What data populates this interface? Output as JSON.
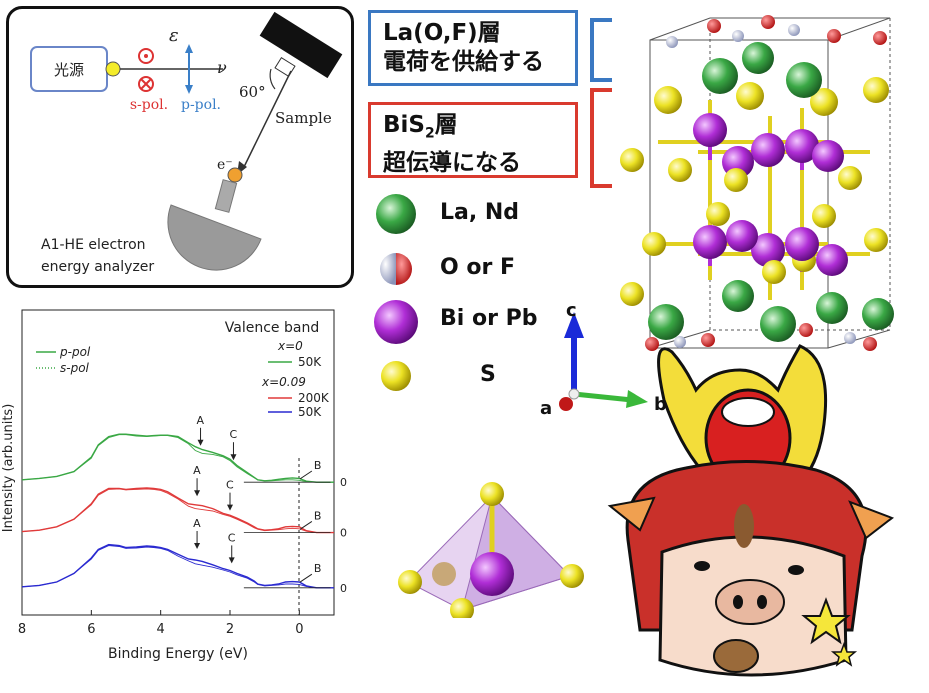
{
  "setup": {
    "light_source": "光源",
    "epsilon": "ε",
    "nu": "ν",
    "s_pol": "s-pol.",
    "p_pol": "p-pol.",
    "angle": "60°",
    "sample": "Sample",
    "electron": "e⁻",
    "analyzer_line1": "A1-HE electron",
    "analyzer_line2": "energy analyzer"
  },
  "layers": {
    "la_line1": "La(O,F)層",
    "la_line2": "電荷を供給する",
    "bi_line1_main": "BiS",
    "bi_line1_sub": "2",
    "bi_line1_tail": "層",
    "bi_line2": "超伝導になる"
  },
  "atom_legend": [
    {
      "label": "La, Nd",
      "color": "#3aa845"
    },
    {
      "label": "O or F",
      "color": "#dd2222"
    },
    {
      "label": "Bi or Pb",
      "color": "#b02ed6"
    },
    {
      "label": "S",
      "color": "#e8e020"
    }
  ],
  "axes_labels": {
    "c": "c",
    "a": "a",
    "b": "b"
  },
  "chart_data": {
    "type": "line",
    "title": "Valence band",
    "xlabel": "Binding Energy (eV)",
    "ylabel": "Intensity (arb.units)",
    "xlim": [
      8,
      -1
    ],
    "x_ticks": [
      "8",
      "6",
      "4",
      "2",
      "0"
    ],
    "zero_labels": [
      "0",
      "0",
      "0"
    ],
    "legend_linestyle": [
      {
        "name": "p-pol",
        "style": "solid"
      },
      {
        "name": "s-pol",
        "style": "dotted"
      }
    ],
    "groups": [
      {
        "heading": "x=0",
        "series": [
          {
            "name": "50K",
            "color": "#3aa845"
          }
        ]
      },
      {
        "heading": "x=0.09",
        "series": [
          {
            "name": "200K",
            "color": "#e03a3a"
          },
          {
            "name": "50K",
            "color": "#2a2ad0"
          }
        ]
      }
    ],
    "peak_labels": [
      "A",
      "C",
      "B",
      "A",
      "C",
      "B",
      "A",
      "C",
      "B"
    ],
    "series": [
      {
        "name": "x=0 50K p-pol",
        "color": "#3aa845",
        "offset": 2.6,
        "x": [
          8,
          7.5,
          7,
          6.5,
          6,
          5.8,
          5.5,
          5.2,
          5,
          4.7,
          4.4,
          4.2,
          4,
          3.8,
          3.5,
          3.2,
          3,
          2.8,
          2.5,
          2.2,
          2,
          1.8,
          1.5,
          1.3,
          1.2,
          1.0,
          0.8,
          0.6,
          0.4,
          0.2,
          0.0,
          -0.2,
          -0.5,
          -1
        ],
        "y": [
          0.05,
          0.08,
          0.12,
          0.22,
          0.52,
          0.78,
          0.95,
          1.0,
          1.0,
          0.98,
          0.96,
          0.97,
          0.98,
          0.98,
          0.95,
          0.82,
          0.74,
          0.68,
          0.62,
          0.55,
          0.48,
          0.35,
          0.2,
          0.1,
          0.05,
          0.03,
          0.04,
          0.06,
          0.08,
          0.09,
          0.08,
          0.02,
          0.0,
          0.0
        ]
      },
      {
        "name": "x=0 50K s-pol",
        "color": "#3aa845",
        "offset": 2.6,
        "dotted": true,
        "x": [
          8,
          7.5,
          7,
          6.5,
          6,
          5.8,
          5.5,
          5.2,
          5,
          4.7,
          4.4,
          4.2,
          4,
          3.8,
          3.5,
          3.2,
          3,
          2.8,
          2.5,
          2.2,
          2,
          1.8,
          1.5,
          1.3,
          1.2,
          1.0,
          0.8,
          0.6,
          0.4,
          0.2,
          0.0,
          -0.2,
          -0.5,
          -1
        ],
        "y": [
          0.05,
          0.08,
          0.12,
          0.22,
          0.5,
          0.76,
          0.93,
          0.99,
          0.99,
          0.96,
          0.95,
          0.96,
          0.97,
          0.97,
          0.93,
          0.8,
          0.66,
          0.6,
          0.58,
          0.53,
          0.45,
          0.32,
          0.18,
          0.09,
          0.05,
          0.03,
          0.03,
          0.04,
          0.05,
          0.05,
          0.04,
          0.01,
          0.0,
          0.0
        ]
      },
      {
        "name": "x=0.09 200K p-pol",
        "color": "#e03a3a",
        "offset": 1.55,
        "x": [
          8,
          7.5,
          7,
          6.5,
          6,
          5.8,
          5.5,
          5.2,
          5,
          4.7,
          4.4,
          4.2,
          4,
          3.8,
          3.5,
          3.2,
          3,
          2.8,
          2.5,
          2.2,
          2,
          1.8,
          1.5,
          1.3,
          1.2,
          1.0,
          0.8,
          0.6,
          0.4,
          0.2,
          0.0,
          -0.2,
          -0.5,
          -1
        ],
        "y": [
          0.02,
          0.05,
          0.12,
          0.28,
          0.6,
          0.8,
          0.92,
          0.92,
          0.9,
          0.92,
          0.93,
          0.92,
          0.9,
          0.85,
          0.72,
          0.6,
          0.58,
          0.56,
          0.5,
          0.4,
          0.36,
          0.3,
          0.2,
          0.12,
          0.08,
          0.05,
          0.06,
          0.08,
          0.12,
          0.13,
          0.12,
          0.04,
          0.0,
          0.0
        ]
      },
      {
        "name": "x=0.09 200K s-pol",
        "color": "#e03a3a",
        "offset": 1.55,
        "dotted": true,
        "x": [
          8,
          7.5,
          7,
          6.5,
          6,
          5.8,
          5.5,
          5.2,
          5,
          4.7,
          4.4,
          4.2,
          4,
          3.8,
          3.5,
          3.2,
          3,
          2.8,
          2.5,
          2.2,
          2,
          1.8,
          1.5,
          1.3,
          1.2,
          1.0,
          0.8,
          0.6,
          0.4,
          0.2,
          0.0,
          -0.2,
          -0.5,
          -1
        ],
        "y": [
          0.02,
          0.05,
          0.12,
          0.28,
          0.58,
          0.78,
          0.9,
          0.91,
          0.89,
          0.9,
          0.91,
          0.9,
          0.88,
          0.82,
          0.7,
          0.55,
          0.5,
          0.48,
          0.45,
          0.38,
          0.34,
          0.28,
          0.18,
          0.1,
          0.07,
          0.04,
          0.05,
          0.06,
          0.08,
          0.09,
          0.08,
          0.03,
          0.0,
          0.0
        ]
      },
      {
        "name": "x=0.09 50K p-pol",
        "color": "#2a2ad0",
        "offset": 0.4,
        "x": [
          8,
          7.5,
          7,
          6.5,
          6,
          5.8,
          5.5,
          5.2,
          5,
          4.7,
          4.4,
          4.2,
          4,
          3.8,
          3.5,
          3.2,
          3,
          2.8,
          2.5,
          2.2,
          2,
          1.8,
          1.5,
          1.3,
          1.2,
          1.0,
          0.8,
          0.6,
          0.4,
          0.2,
          0.0,
          -0.2,
          -0.5,
          -1
        ],
        "y": [
          0.02,
          0.05,
          0.12,
          0.3,
          0.62,
          0.8,
          0.9,
          0.88,
          0.84,
          0.85,
          0.87,
          0.86,
          0.84,
          0.8,
          0.7,
          0.6,
          0.58,
          0.55,
          0.48,
          0.4,
          0.36,
          0.3,
          0.22,
          0.14,
          0.08,
          0.05,
          0.06,
          0.08,
          0.12,
          0.13,
          0.12,
          0.04,
          0.0,
          0.0
        ]
      },
      {
        "name": "x=0.09 50K s-pol",
        "color": "#2a2ad0",
        "offset": 0.4,
        "dotted": true,
        "x": [
          8,
          7.5,
          7,
          6.5,
          6,
          5.8,
          5.5,
          5.2,
          5,
          4.7,
          4.4,
          4.2,
          4,
          3.8,
          3.5,
          3.2,
          3,
          2.8,
          2.5,
          2.2,
          2,
          1.8,
          1.5,
          1.3,
          1.2,
          1.0,
          0.8,
          0.6,
          0.4,
          0.2,
          0.0,
          -0.2,
          -0.5,
          -1
        ],
        "y": [
          0.02,
          0.05,
          0.12,
          0.3,
          0.6,
          0.78,
          0.88,
          0.86,
          0.82,
          0.83,
          0.85,
          0.84,
          0.82,
          0.78,
          0.66,
          0.56,
          0.5,
          0.47,
          0.43,
          0.37,
          0.33,
          0.27,
          0.2,
          0.12,
          0.07,
          0.04,
          0.05,
          0.06,
          0.08,
          0.08,
          0.07,
          0.03,
          0.0,
          0.0
        ]
      }
    ]
  }
}
